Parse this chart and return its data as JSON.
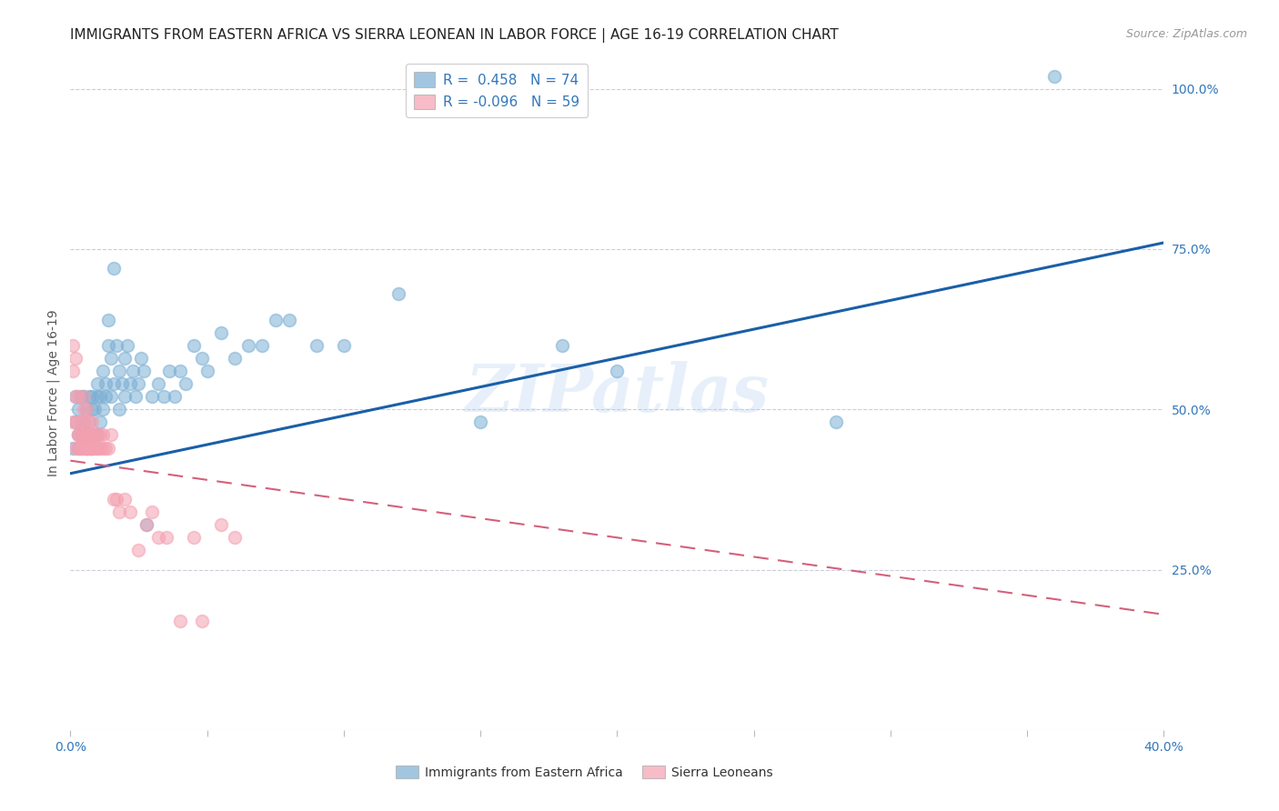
{
  "title": "IMMIGRANTS FROM EASTERN AFRICA VS SIERRA LEONEAN IN LABOR FORCE | AGE 16-19 CORRELATION CHART",
  "source": "Source: ZipAtlas.com",
  "ylabel": "In Labor Force | Age 16-19",
  "xlim": [
    0.0,
    0.4
  ],
  "ylim": [
    0.0,
    1.05
  ],
  "xticks": [
    0.0,
    0.05,
    0.1,
    0.15,
    0.2,
    0.25,
    0.3,
    0.35,
    0.4
  ],
  "xtick_labels": [
    "0.0%",
    "",
    "",
    "",
    "",
    "",
    "",
    "",
    "40.0%"
  ],
  "yticks_right": [
    0.0,
    0.25,
    0.5,
    0.75,
    1.0
  ],
  "ytick_right_labels": [
    "",
    "25.0%",
    "50.0%",
    "75.0%",
    "100.0%"
  ],
  "blue_color": "#7BAFD4",
  "pink_color": "#F4A0B0",
  "blue_line_color": "#1A5FA8",
  "pink_line_color": "#D4607A",
  "legend_R_blue": "R =  0.458",
  "legend_N_blue": "N = 74",
  "legend_R_pink": "R = -0.096",
  "legend_N_pink": "N = 59",
  "label_blue": "Immigrants from Eastern Africa",
  "label_pink": "Sierra Leoneans",
  "watermark": "ZIPatlas",
  "blue_line_x0": 0.0,
  "blue_line_y0": 0.4,
  "blue_line_x1": 0.4,
  "blue_line_y1": 0.76,
  "pink_line_x0": 0.0,
  "pink_line_y0": 0.42,
  "pink_line_x1": 0.4,
  "pink_line_y1": 0.18,
  "blue_x": [
    0.001,
    0.002,
    0.002,
    0.003,
    0.003,
    0.003,
    0.004,
    0.004,
    0.005,
    0.005,
    0.005,
    0.006,
    0.006,
    0.007,
    0.007,
    0.007,
    0.008,
    0.008,
    0.008,
    0.009,
    0.009,
    0.01,
    0.01,
    0.01,
    0.011,
    0.011,
    0.012,
    0.012,
    0.013,
    0.013,
    0.014,
    0.014,
    0.015,
    0.015,
    0.016,
    0.016,
    0.017,
    0.018,
    0.018,
    0.019,
    0.02,
    0.02,
    0.021,
    0.022,
    0.023,
    0.024,
    0.025,
    0.026,
    0.027,
    0.028,
    0.03,
    0.032,
    0.034,
    0.036,
    0.038,
    0.04,
    0.042,
    0.045,
    0.048,
    0.05,
    0.055,
    0.06,
    0.065,
    0.07,
    0.075,
    0.08,
    0.09,
    0.1,
    0.12,
    0.15,
    0.18,
    0.2,
    0.28,
    0.36
  ],
  "blue_y": [
    0.44,
    0.48,
    0.52,
    0.46,
    0.5,
    0.44,
    0.52,
    0.46,
    0.48,
    0.52,
    0.46,
    0.5,
    0.44,
    0.52,
    0.46,
    0.48,
    0.5,
    0.44,
    0.52,
    0.46,
    0.5,
    0.52,
    0.46,
    0.54,
    0.48,
    0.52,
    0.56,
    0.5,
    0.52,
    0.54,
    0.64,
    0.6,
    0.58,
    0.52,
    0.54,
    0.72,
    0.6,
    0.56,
    0.5,
    0.54,
    0.52,
    0.58,
    0.6,
    0.54,
    0.56,
    0.52,
    0.54,
    0.58,
    0.56,
    0.32,
    0.52,
    0.54,
    0.52,
    0.56,
    0.52,
    0.56,
    0.54,
    0.6,
    0.58,
    0.56,
    0.62,
    0.58,
    0.6,
    0.6,
    0.64,
    0.64,
    0.6,
    0.6,
    0.68,
    0.48,
    0.6,
    0.56,
    0.48,
    1.02
  ],
  "pink_x": [
    0.001,
    0.001,
    0.001,
    0.002,
    0.002,
    0.002,
    0.002,
    0.003,
    0.003,
    0.003,
    0.003,
    0.004,
    0.004,
    0.004,
    0.004,
    0.005,
    0.005,
    0.005,
    0.005,
    0.005,
    0.006,
    0.006,
    0.006,
    0.006,
    0.007,
    0.007,
    0.007,
    0.007,
    0.008,
    0.008,
    0.008,
    0.008,
    0.009,
    0.009,
    0.01,
    0.01,
    0.01,
    0.011,
    0.011,
    0.012,
    0.012,
    0.013,
    0.014,
    0.015,
    0.016,
    0.017,
    0.018,
    0.02,
    0.022,
    0.025,
    0.028,
    0.03,
    0.032,
    0.035,
    0.04,
    0.045,
    0.048,
    0.055,
    0.06
  ],
  "pink_y": [
    0.56,
    0.48,
    0.6,
    0.52,
    0.48,
    0.44,
    0.58,
    0.46,
    0.44,
    0.52,
    0.46,
    0.44,
    0.48,
    0.46,
    0.44,
    0.5,
    0.44,
    0.46,
    0.48,
    0.52,
    0.44,
    0.46,
    0.5,
    0.44,
    0.46,
    0.44,
    0.48,
    0.44,
    0.44,
    0.46,
    0.44,
    0.48,
    0.44,
    0.46,
    0.44,
    0.46,
    0.44,
    0.44,
    0.46,
    0.44,
    0.46,
    0.44,
    0.44,
    0.46,
    0.36,
    0.36,
    0.34,
    0.36,
    0.34,
    0.28,
    0.32,
    0.34,
    0.3,
    0.3,
    0.17,
    0.3,
    0.17,
    0.32,
    0.3
  ],
  "grid_color": "#CCCCDD",
  "background_color": "#FFFFFF",
  "right_axis_color": "#3377BB",
  "title_fontsize": 11,
  "axis_label_fontsize": 10
}
